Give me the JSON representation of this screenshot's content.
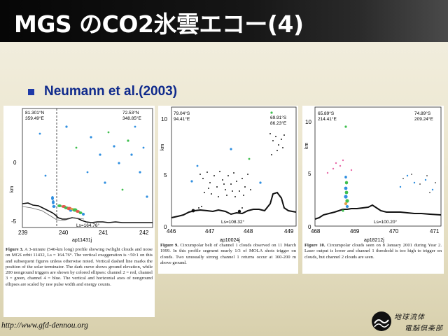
{
  "slide": {
    "title": "MGS のCO2氷雲エコー(4)",
    "bullet": "Neumann et al.(2003)",
    "footer_url": "http://www.gfd-dennou.org",
    "colors": {
      "title_bar": "#0a0a0a",
      "bullet": "#0f2a8c",
      "background": "#ece6cf"
    }
  },
  "figures": [
    {
      "corner_left": [
        "81.301°N",
        "359.49°E"
      ],
      "corner_right": [
        "72.53°N",
        "348.85°E"
      ],
      "ls": "Ls=164.76°",
      "xlabel": "ap11431j",
      "ylabel": "km",
      "xticks": [
        "239",
        "240",
        "241",
        "242"
      ],
      "yticks": [
        "0",
        "-5"
      ],
      "caption_num": "Figure 3.",
      "caption": "A 3-minute (540-km long) profile showing twilight clouds and noise on MGS orbit 11432, Ls = 164.76°. The vertical exaggeration is ~50:1 on this and subsequent figures unless otherwise noted. Vertical dashed line marks the position of the solar terminator. The dark curve shows ground elevation, while 200 nonground triggers are shown by colored ellipses: channel 2 = red, channel 3 = green, channel 4 = blue. The vertical and horizontal axes of nonground ellipses are scaled by raw pulse width and energy counts."
    },
    {
      "corner_left": [
        "79.04°S",
        "94.41°E"
      ],
      "corner_right": [
        "69.91°S",
        "86.23°E"
      ],
      "ls": "Ls=108.32°",
      "xlabel": "ap10024j",
      "ylabel": "km",
      "xticks": [
        "446",
        "447",
        "448",
        "449"
      ],
      "yticks": [
        "10",
        "5",
        "0"
      ],
      "caption_num": "Figure 9.",
      "caption": "Circumpolar belt of channel 1 clouds observed on 11 March 1999. In this profile segment nearly 1/3 of MOLA shots trigger on clouds. Two unusually strong channel 1 returns occur at 160-200 m above ground."
    },
    {
      "corner_left": [
        "65.89°S",
        "214.41°E"
      ],
      "corner_right": [
        "74.89°S",
        "209.24°E"
      ],
      "ls": "Ls=100.20°",
      "xlabel": "ap18212j",
      "ylabel": "km",
      "xticks": [
        "468",
        "469",
        "470",
        "471"
      ],
      "yticks": [
        "10",
        "5",
        "0"
      ],
      "caption_num": "Figure 10.",
      "caption": "Circumpolar clouds seen on 8 January 2001 during Year 2. Laser output is lower and channel 1 threshold is too high to trigger on clouds, but channel 2 clouds are seen."
    }
  ],
  "logo_text": "地球流体電脳倶楽部"
}
